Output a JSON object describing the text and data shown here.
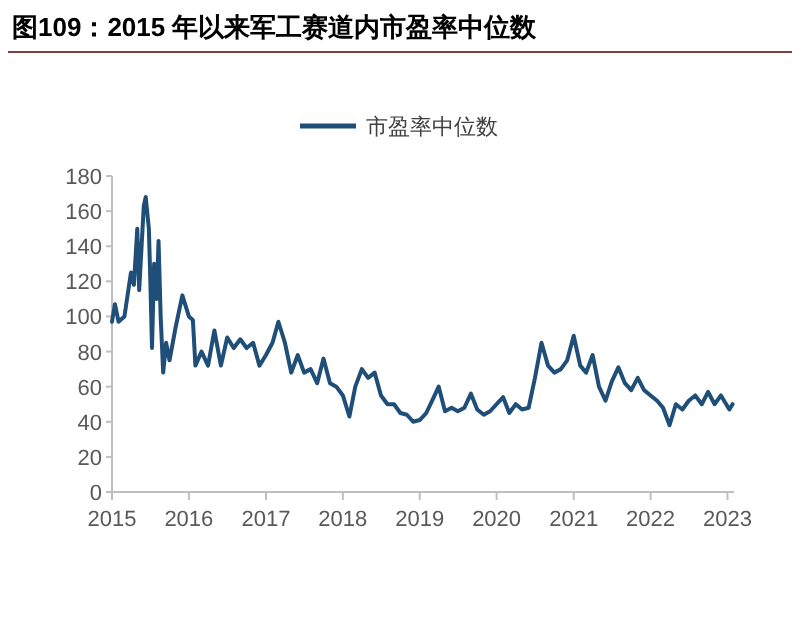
{
  "chart_data": {
    "type": "line",
    "title": "图109：2015 年以来军工赛道内市盈率中位数",
    "legend": "top",
    "x": [
      "2015-01-01",
      "2015-01-15",
      "2015-02-01",
      "2015-03-01",
      "2015-04-01",
      "2015-04-15",
      "2015-05-01",
      "2015-05-10",
      "2015-06-01",
      "2015-06-10",
      "2015-06-25",
      "2015-07-01",
      "2015-07-10",
      "2015-07-20",
      "2015-08-01",
      "2015-08-10",
      "2015-08-20",
      "2015-09-01",
      "2015-09-15",
      "2015-10-01",
      "2015-11-01",
      "2015-12-01",
      "2016-01-01",
      "2016-01-20",
      "2016-02-01",
      "2016-03-01",
      "2016-04-01",
      "2016-05-01",
      "2016-06-01",
      "2016-07-01",
      "2016-08-01",
      "2016-09-01",
      "2016-10-01",
      "2016-11-01",
      "2016-12-01",
      "2017-01-01",
      "2017-02-01",
      "2017-03-01",
      "2017-04-01",
      "2017-05-01",
      "2017-06-01",
      "2017-07-01",
      "2017-08-01",
      "2017-09-01",
      "2017-10-01",
      "2017-11-01",
      "2017-12-01",
      "2018-01-01",
      "2018-02-01",
      "2018-03-01",
      "2018-04-01",
      "2018-05-01",
      "2018-06-01",
      "2018-07-01",
      "2018-08-01",
      "2018-09-01",
      "2018-10-01",
      "2018-11-01",
      "2018-12-01",
      "2019-01-01",
      "2019-02-01",
      "2019-03-01",
      "2019-04-01",
      "2019-05-01",
      "2019-06-01",
      "2019-07-01",
      "2019-08-01",
      "2019-09-01",
      "2019-10-01",
      "2019-11-01",
      "2019-12-01",
      "2020-01-01",
      "2020-02-01",
      "2020-03-01",
      "2020-04-01",
      "2020-05-01",
      "2020-06-01",
      "2020-07-01",
      "2020-08-01",
      "2020-09-01",
      "2020-10-01",
      "2020-11-01",
      "2020-12-01",
      "2021-01-01",
      "2021-02-01",
      "2021-03-01",
      "2021-04-01",
      "2021-05-01",
      "2021-06-01",
      "2021-07-01",
      "2021-08-01",
      "2021-09-01",
      "2021-10-01",
      "2021-11-01",
      "2021-12-01",
      "2022-01-01",
      "2022-02-01",
      "2022-03-01",
      "2022-04-01",
      "2022-05-01",
      "2022-06-01",
      "2022-07-01",
      "2022-08-01",
      "2022-09-01",
      "2022-10-01",
      "2022-11-01",
      "2022-12-01",
      "2023-01-10",
      "2023-01-25"
    ],
    "series": [
      {
        "name": "市盈率中位数",
        "color": "#1f4e79",
        "values": [
          97,
          107,
          97,
          100,
          125,
          118,
          150,
          115,
          163,
          168,
          150,
          125,
          82,
          130,
          110,
          143,
          100,
          68,
          85,
          75,
          95,
          112,
          100,
          98,
          72,
          80,
          72,
          92,
          72,
          88,
          82,
          87,
          82,
          85,
          72,
          78,
          85,
          97,
          85,
          68,
          78,
          68,
          70,
          62,
          76,
          62,
          60,
          55,
          43,
          60,
          70,
          65,
          68,
          55,
          50,
          50,
          45,
          44,
          40,
          41,
          45,
          52,
          60,
          46,
          48,
          46,
          48,
          56,
          47,
          44,
          46,
          50,
          54,
          45,
          50,
          47,
          48,
          65,
          85,
          72,
          68,
          70,
          75,
          89,
          72,
          68,
          78,
          60,
          52,
          63,
          71,
          62,
          58,
          65,
          58,
          55,
          52,
          48,
          38,
          50,
          47,
          52,
          55,
          50,
          57,
          50,
          55,
          47,
          50
        ]
      }
    ],
    "xlim": [
      "2015-01-01",
      "2023-02-01"
    ],
    "xticks": [
      {
        "value": "2015-01-01",
        "label": "2015"
      },
      {
        "value": "2016-01-01",
        "label": "2016"
      },
      {
        "value": "2017-01-01",
        "label": "2017"
      },
      {
        "value": "2018-01-01",
        "label": "2018"
      },
      {
        "value": "2019-01-01",
        "label": "2019"
      },
      {
        "value": "2020-01-01",
        "label": "2020"
      },
      {
        "value": "2021-01-01",
        "label": "2021"
      },
      {
        "value": "2022-01-01",
        "label": "2022"
      },
      {
        "value": "2023-01-01",
        "label": "2023"
      }
    ],
    "ylim": [
      0,
      180
    ],
    "yticks": [
      0,
      20,
      40,
      60,
      80,
      100,
      120,
      140,
      160,
      180
    ],
    "grid": false
  }
}
